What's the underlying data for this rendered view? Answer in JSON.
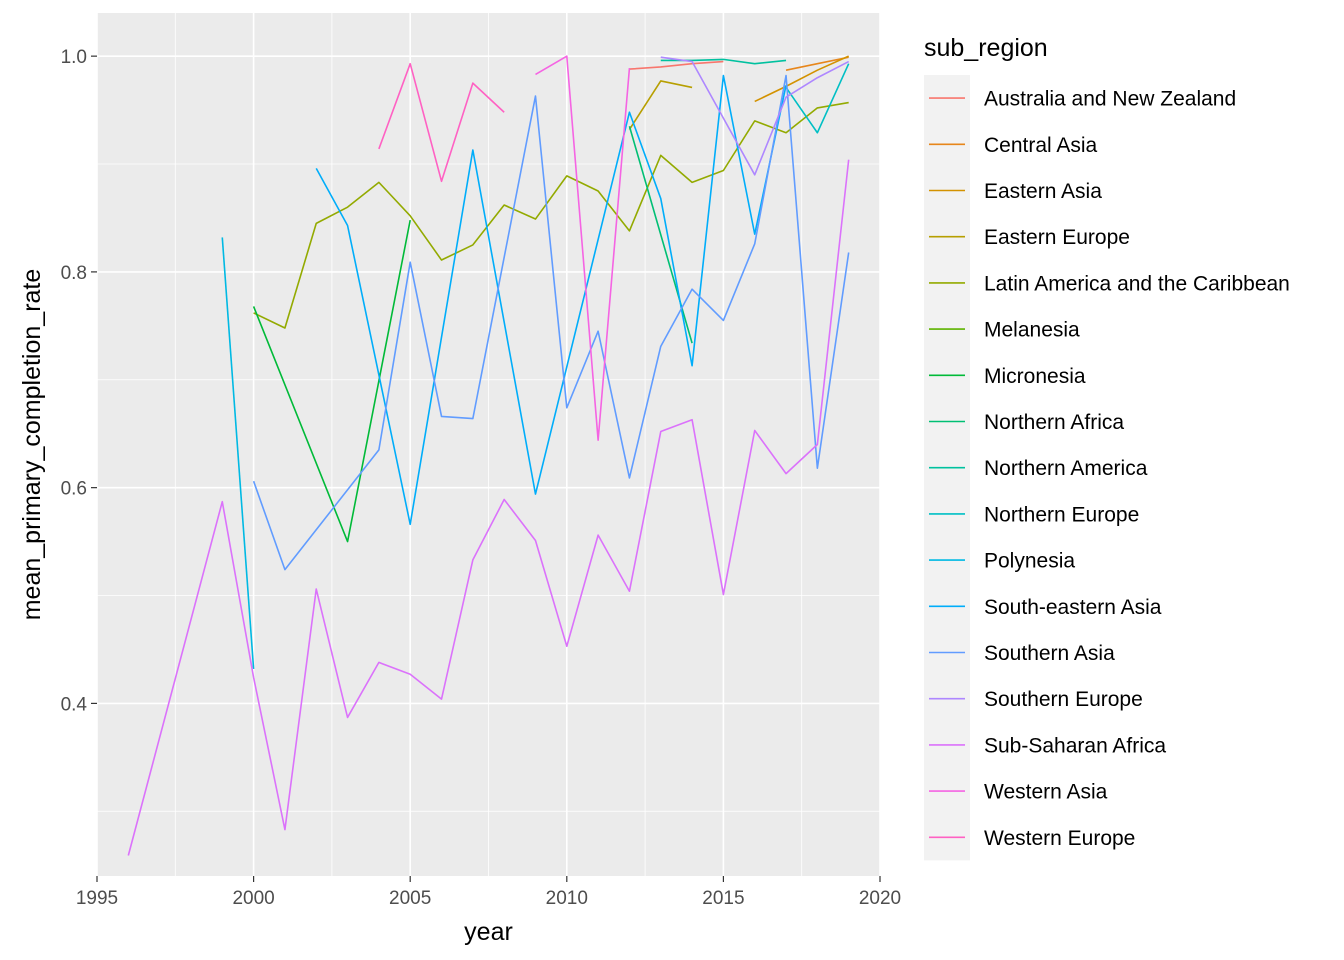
{
  "chart_data": {
    "type": "line",
    "xlabel": "year",
    "ylabel": "mean_primary_completion_rate",
    "xlim": [
      1995,
      2020
    ],
    "ylim": [
      0.24,
      1.04
    ],
    "x_ticks": [
      1995,
      2000,
      2005,
      2010,
      2015,
      2020
    ],
    "x_tick_labels": [
      "1995",
      "2000",
      "2005",
      "2010",
      "2015",
      "2020"
    ],
    "y_ticks": [
      0.4,
      0.6,
      0.8,
      1.0
    ],
    "y_tick_labels": [
      "0.4",
      "0.6",
      "0.8",
      "1.0"
    ],
    "grid": true,
    "legend": {
      "title": "sub_region",
      "position": "right"
    },
    "series": [
      {
        "name": "Australia and New Zealand",
        "color": "#F8766D",
        "points": [
          [
            2012,
            0.988
          ],
          [
            2013,
            0.99
          ],
          [
            2014,
            0.993
          ],
          [
            2015,
            0.995
          ]
        ]
      },
      {
        "name": "Central Asia",
        "color": "#E7861B",
        "points": [
          [
            2017,
            0.987
          ],
          [
            2018,
            0.993
          ],
          [
            2019,
            0.999
          ]
        ]
      },
      {
        "name": "Eastern Asia",
        "color": "#D39200",
        "points": [
          [
            2016,
            0.958
          ],
          [
            2017,
            0.972
          ],
          [
            2018,
            0.987
          ],
          [
            2019,
            1.0
          ]
        ]
      },
      {
        "name": "Eastern Europe",
        "color": "#B79F00",
        "points": [
          [
            2012,
            0.932
          ],
          [
            2013,
            0.977
          ],
          [
            2014,
            0.971
          ]
        ]
      },
      {
        "name": "Latin America and the Caribbean",
        "color": "#93AA00",
        "points": [
          [
            2000,
            0.762
          ],
          [
            2001,
            0.748
          ],
          [
            2002,
            0.845
          ],
          [
            2003,
            0.86
          ],
          [
            2004,
            0.883
          ],
          [
            2005,
            0.852
          ],
          [
            2006,
            0.811
          ],
          [
            2007,
            0.825
          ],
          [
            2008,
            0.862
          ],
          [
            2009,
            0.849
          ],
          [
            2010,
            0.889
          ],
          [
            2011,
            0.875
          ],
          [
            2012,
            0.838
          ],
          [
            2013,
            0.908
          ],
          [
            2014,
            0.883
          ],
          [
            2015,
            0.894
          ],
          [
            2016,
            0.94
          ],
          [
            2017,
            0.929
          ],
          [
            2018,
            0.952
          ],
          [
            2019,
            0.957
          ]
        ]
      },
      {
        "name": "Melanesia",
        "color": "#5EB300",
        "points": []
      },
      {
        "name": "Micronesia",
        "color": "#00BA38",
        "points": [
          [
            2000,
            0.768
          ],
          [
            2003,
            0.55
          ],
          [
            2005,
            0.848
          ]
        ]
      },
      {
        "name": "Northern Africa",
        "color": "#00BF74",
        "points": [
          [
            2012,
            0.935
          ],
          [
            2014,
            0.734
          ]
        ]
      },
      {
        "name": "Northern America",
        "color": "#00C19F",
        "points": [
          [
            2013,
            0.996
          ],
          [
            2014,
            0.996
          ],
          [
            2015,
            0.997
          ],
          [
            2016,
            0.993
          ],
          [
            2017,
            0.996
          ]
        ]
      },
      {
        "name": "Northern Europe",
        "color": "#00BFC4",
        "points": [
          [
            2017,
            0.971
          ],
          [
            2018,
            0.929
          ],
          [
            2019,
            0.993
          ]
        ]
      },
      {
        "name": "Polynesia",
        "color": "#00B9E3",
        "points": [
          [
            1999,
            0.832
          ],
          [
            2000,
            0.432
          ]
        ]
      },
      {
        "name": "South-eastern Asia",
        "color": "#00ADFA",
        "points": [
          [
            2002,
            0.896
          ],
          [
            2003,
            0.843
          ],
          [
            2005,
            0.566
          ],
          [
            2007,
            0.913
          ],
          [
            2009,
            0.594
          ],
          [
            2012,
            0.948
          ],
          [
            2013,
            0.868
          ],
          [
            2014,
            0.713
          ],
          [
            2015,
            0.982
          ],
          [
            2016,
            0.835
          ],
          [
            2017,
            0.973
          ]
        ]
      },
      {
        "name": "Southern Asia",
        "color": "#619CFF",
        "points": [
          [
            2000,
            0.606
          ],
          [
            2001,
            0.524
          ],
          [
            2004,
            0.635
          ],
          [
            2005,
            0.809
          ],
          [
            2006,
            0.666
          ],
          [
            2007,
            0.664
          ],
          [
            2009,
            0.963
          ],
          [
            2010,
            0.674
          ],
          [
            2011,
            0.745
          ],
          [
            2012,
            0.609
          ],
          [
            2013,
            0.731
          ],
          [
            2014,
            0.784
          ],
          [
            2015,
            0.755
          ],
          [
            2016,
            0.826
          ],
          [
            2017,
            0.982
          ],
          [
            2018,
            0.618
          ],
          [
            2019,
            0.818
          ]
        ]
      },
      {
        "name": "Southern Europe",
        "color": "#AE87FF",
        "points": [
          [
            2013,
            0.999
          ],
          [
            2014,
            0.995
          ],
          [
            2016,
            0.89
          ],
          [
            2017,
            0.962
          ],
          [
            2018,
            0.98
          ],
          [
            2019,
            0.995
          ]
        ]
      },
      {
        "name": "Sub-Saharan Africa",
        "color": "#DB72FB",
        "points": [
          [
            1996,
            0.259
          ],
          [
            1999,
            0.587
          ],
          [
            2000,
            0.424
          ],
          [
            2001,
            0.283
          ],
          [
            2002,
            0.506
          ],
          [
            2003,
            0.387
          ],
          [
            2004,
            0.438
          ],
          [
            2005,
            0.427
          ],
          [
            2006,
            0.404
          ],
          [
            2007,
            0.533
          ],
          [
            2008,
            0.589
          ],
          [
            2009,
            0.551
          ],
          [
            2010,
            0.453
          ],
          [
            2011,
            0.556
          ],
          [
            2012,
            0.504
          ],
          [
            2013,
            0.652
          ],
          [
            2014,
            0.663
          ],
          [
            2015,
            0.501
          ],
          [
            2016,
            0.653
          ],
          [
            2017,
            0.613
          ],
          [
            2018,
            0.64
          ],
          [
            2019,
            0.904
          ]
        ]
      },
      {
        "name": "Western Asia",
        "color": "#F564E3",
        "points": [
          [
            2009,
            0.983
          ],
          [
            2010,
            1.0
          ],
          [
            2011,
            0.644
          ],
          [
            2012,
            0.989
          ]
        ]
      },
      {
        "name": "Western Europe",
        "color": "#FF61C3",
        "points": [
          [
            2004,
            0.914
          ],
          [
            2005,
            0.993
          ],
          [
            2006,
            0.884
          ],
          [
            2007,
            0.975
          ],
          [
            2008,
            0.948
          ]
        ]
      }
    ]
  }
}
